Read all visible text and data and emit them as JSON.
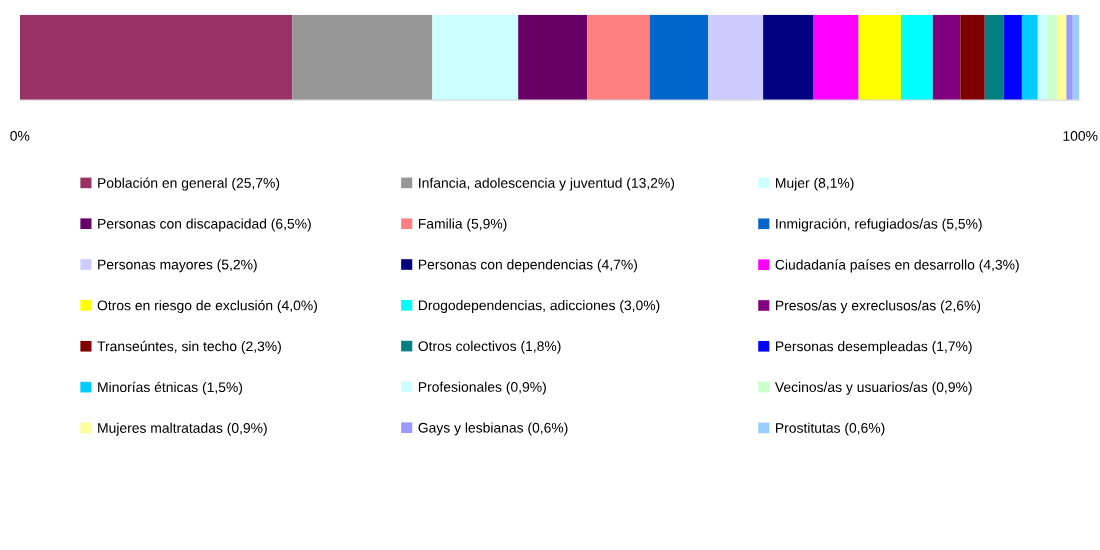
{
  "chart_data": {
    "type": "bar",
    "orientation": "horizontal",
    "stacked": true,
    "categories": [
      null
    ],
    "xlim": [
      0,
      100
    ],
    "xticks": [
      {
        "value": 0,
        "label": "0%"
      },
      {
        "value": 100,
        "label": "100%"
      }
    ],
    "grid": false,
    "legend": "bottom",
    "tick_labels": "x",
    "series": [
      {
        "name": "Población en general (25,7%)",
        "color": "#993366",
        "values": [
          25.7
        ]
      },
      {
        "name": "Infancia, adolescencia y juventud (13,2%)",
        "color": "#969696",
        "values": [
          13.2
        ]
      },
      {
        "name": "Mujer (8,1%)",
        "color": "#ccffff",
        "values": [
          8.1
        ]
      },
      {
        "name": "Personas con discapacidad (6,5%)",
        "color": "#660066",
        "values": [
          6.5
        ]
      },
      {
        "name": "Familia (5,9%)",
        "color": "#ff8080",
        "values": [
          5.9
        ]
      },
      {
        "name": "Inmigración, refugiados/as (5,5%)",
        "color": "#0066cc",
        "values": [
          5.5
        ]
      },
      {
        "name": "Personas mayores (5,2%)",
        "color": "#ccccff",
        "values": [
          5.2
        ]
      },
      {
        "name": "Personas con dependencias (4,7%)",
        "color": "#000080",
        "values": [
          4.7
        ]
      },
      {
        "name": "Ciudadanía países en desarrollo (4,3%)",
        "color": "#ff00ff",
        "values": [
          4.3
        ]
      },
      {
        "name": "Otros en riesgo de exclusión (4,0%)",
        "color": "#ffff00",
        "values": [
          4.0
        ]
      },
      {
        "name": "Drogodependencias, adicciones (3,0%)",
        "color": "#00ffff",
        "values": [
          3.0
        ]
      },
      {
        "name": "Presos/as y exreclusos/as (2,6%)",
        "color": "#800080",
        "values": [
          2.6
        ]
      },
      {
        "name": "Transeúntes, sin techo (2,3%)",
        "color": "#800000",
        "values": [
          2.3
        ]
      },
      {
        "name": "Otros colectivos (1,8%)",
        "color": "#008080",
        "values": [
          1.8
        ]
      },
      {
        "name": "Personas desempleadas (1,7%)",
        "color": "#0000ff",
        "values": [
          1.7
        ]
      },
      {
        "name": "Minorías étnicas (1,5%)",
        "color": "#00ccff",
        "values": [
          1.5
        ]
      },
      {
        "name": "Profesionales (0,9%)",
        "color": "#ccffff",
        "values": [
          0.9
        ]
      },
      {
        "name": "Vecinos/as y usuarios/as (0,9%)",
        "color": "#ccffcc",
        "values": [
          0.9
        ]
      },
      {
        "name": "Mujeres maltratadas (0,9%)",
        "color": "#ffff99",
        "values": [
          0.9
        ]
      },
      {
        "name": "Gays y lesbianas (0,6%)",
        "color": "#9999ff",
        "values": [
          0.6
        ]
      },
      {
        "name": "Prostitutas (0,6%)",
        "color": "#99ccff",
        "values": [
          0.6
        ]
      }
    ]
  }
}
